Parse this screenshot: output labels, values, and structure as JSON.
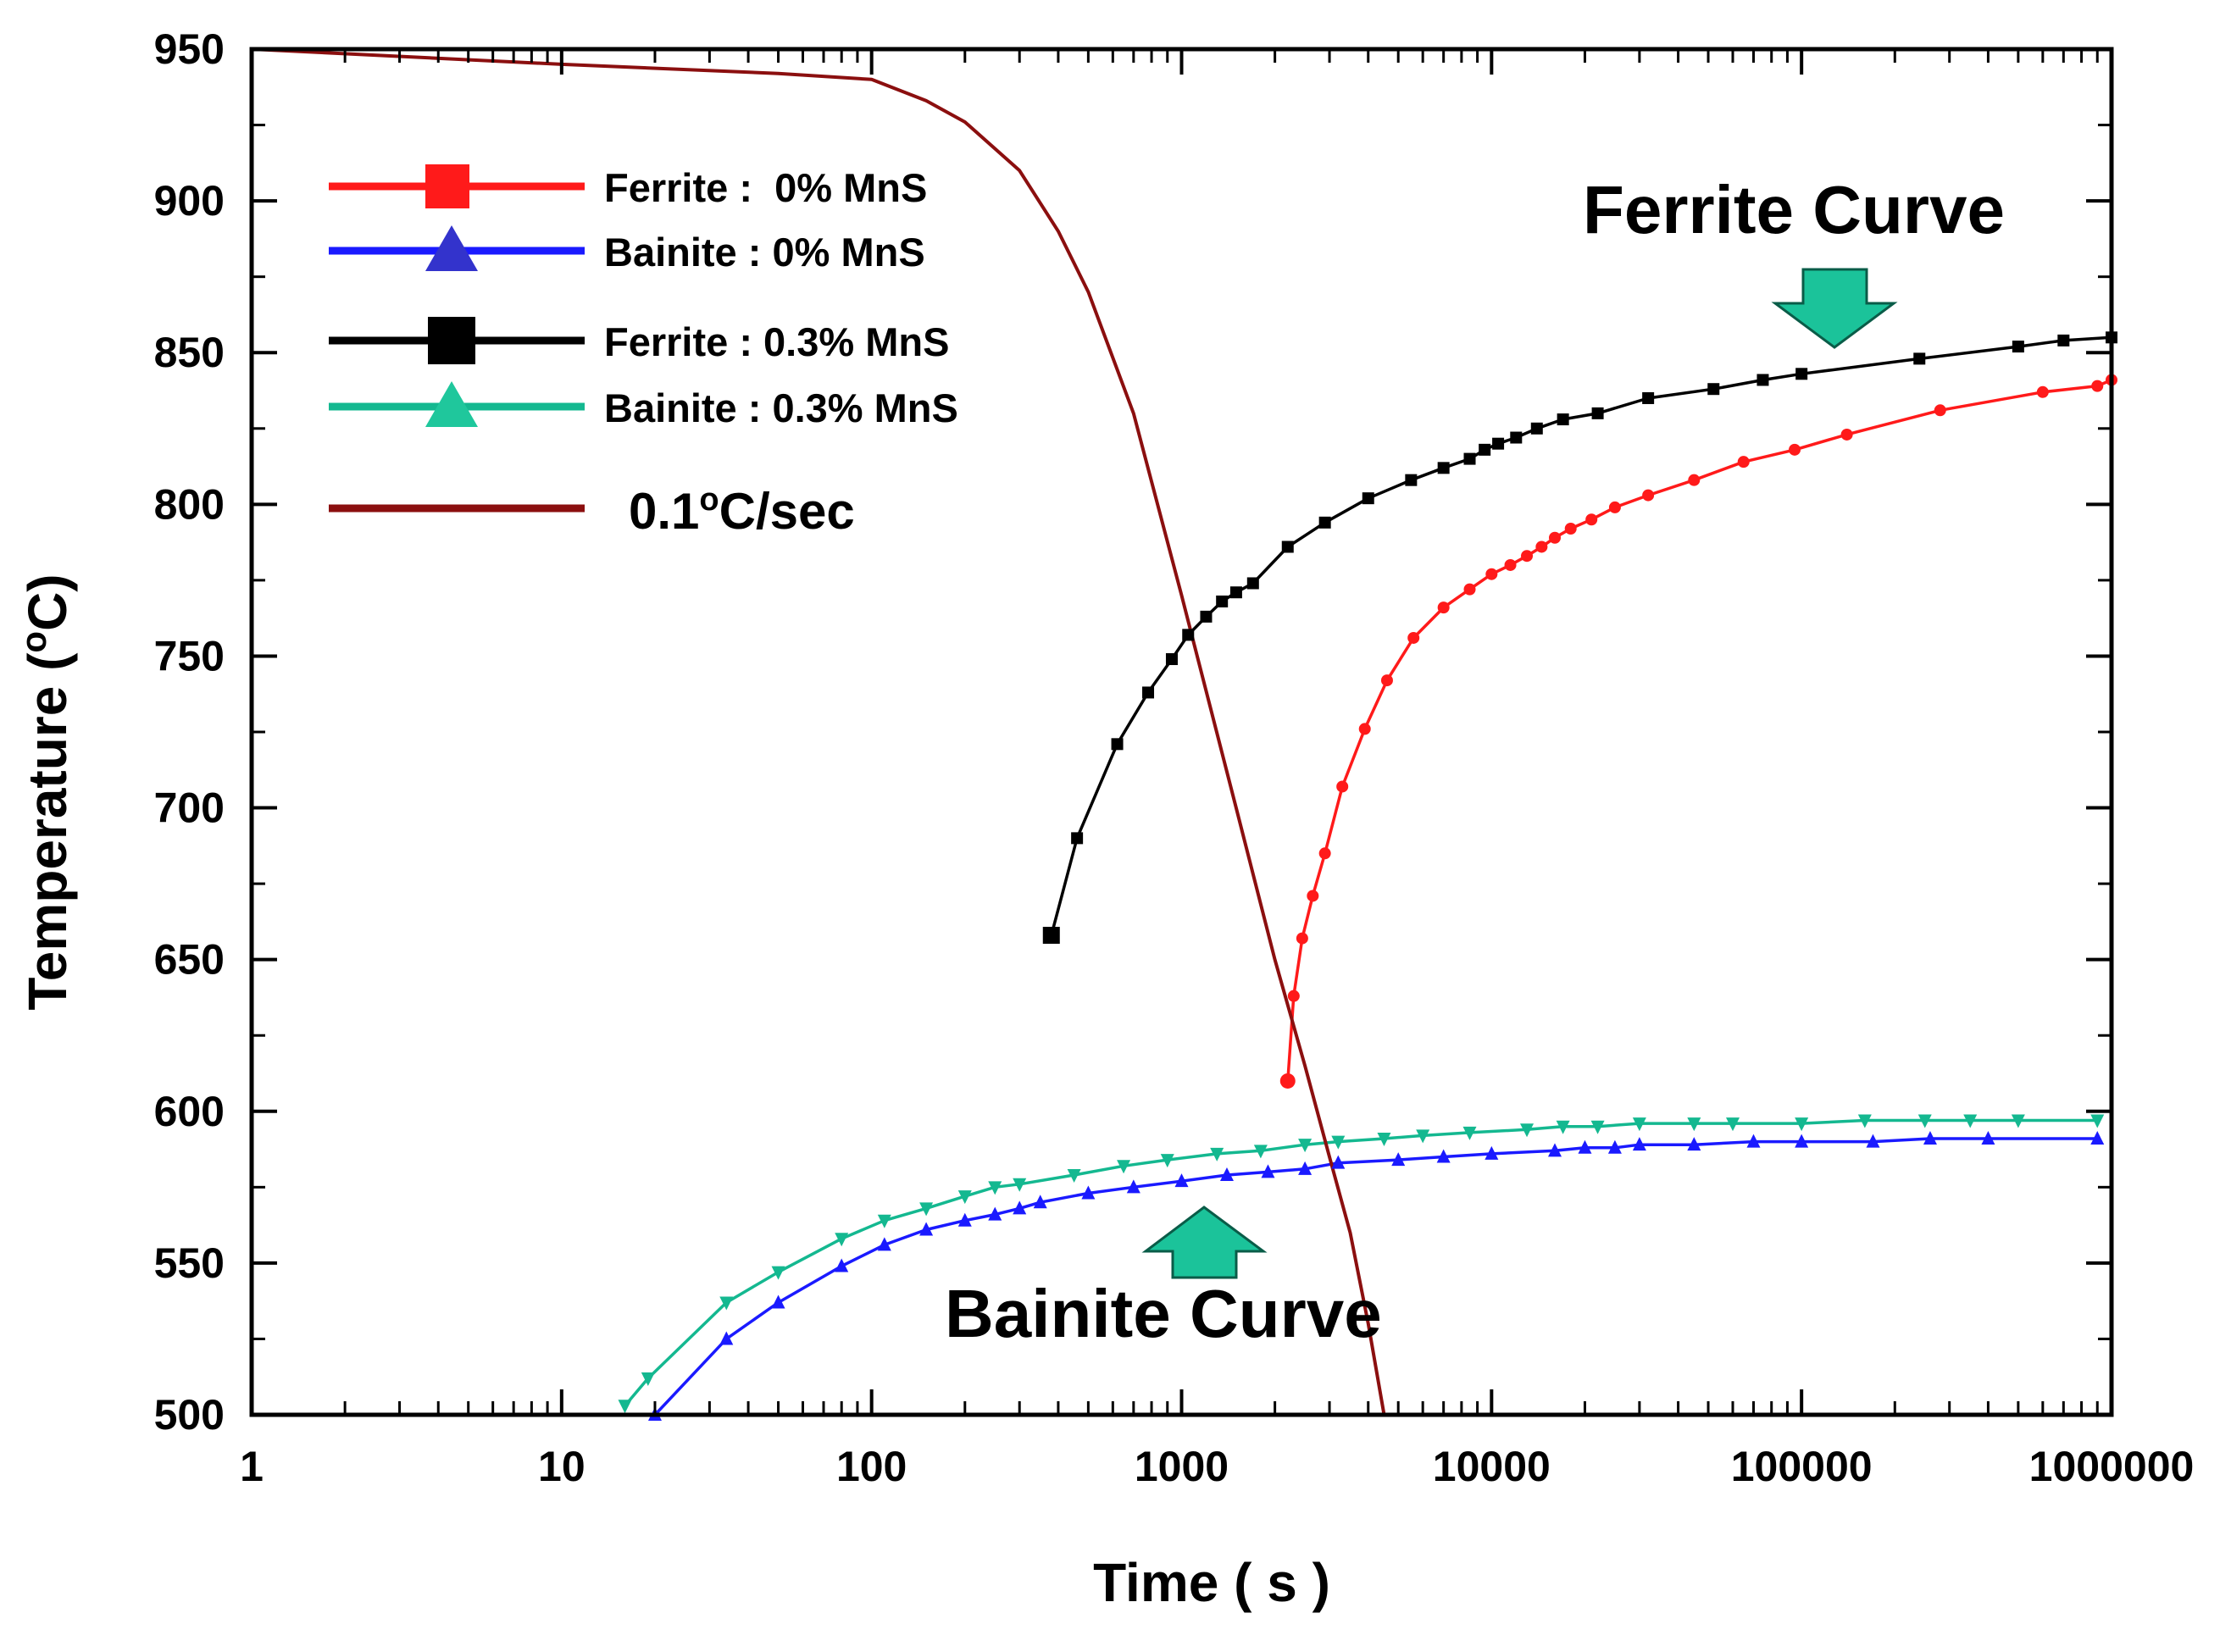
{
  "chart_data": {
    "type": "line",
    "xlabel": "Time ( s )",
    "ylabel": "Temperature  (oC)",
    "ylabel_parts": {
      "pre": "Temperature  (",
      "sup": "o",
      "post": "C)"
    },
    "x_scale": "log",
    "xlim": [
      1,
      1000000
    ],
    "ylim": [
      500,
      950
    ],
    "x_ticks": [
      1,
      10,
      100,
      1000,
      10000,
      100000,
      1000000
    ],
    "x_tick_labels": [
      "1",
      "10",
      "100",
      "1000",
      "10000",
      "100000",
      "1000000"
    ],
    "y_ticks": [
      500,
      550,
      600,
      650,
      700,
      750,
      800,
      850,
      900,
      950
    ],
    "y_tick_labels": [
      "500",
      "550",
      "600",
      "650",
      "700",
      "750",
      "800",
      "850",
      "900",
      "950"
    ],
    "grid": false,
    "legend_position": "top-left",
    "legend": [
      {
        "label": "Ferrite :  0% MnS",
        "color": "#ff1a1a",
        "marker": "square"
      },
      {
        "label": "Bainite : 0% MnS",
        "color": "#1a1aff",
        "marker": "triangle-up"
      },
      {
        "label": "Ferrite : 0.3% MnS",
        "color": "#000000",
        "marker": "square"
      },
      {
        "label": "Bainite : 0.3% MnS",
        "color": "#14b890",
        "marker": "triangle-up"
      },
      {
        "label": "0.1oC/sec",
        "label_parts": {
          "pre": "0.1",
          "sup": "o",
          "post": "C/sec"
        },
        "color": "#8b0f0f",
        "marker": "none"
      }
    ],
    "annotations": [
      {
        "text": "Ferrite Curve",
        "arrow": "down",
        "arrow_color": "#1bc39a",
        "points_to": {
          "x": 130000,
          "y": 852
        }
      },
      {
        "text": "Bainite Curve",
        "arrow": "up",
        "arrow_color": "#1bc39a",
        "points_to": {
          "x": 1200,
          "y": 585
        }
      }
    ],
    "series": [
      {
        "name": "Ferrite :  0% MnS",
        "color": "#ff1a1a",
        "marker": "circle",
        "x": [
          2200,
          2300,
          2450,
          2650,
          2900,
          3300,
          3900,
          4600,
          5600,
          7000,
          8500,
          10000,
          11500,
          13000,
          14500,
          16000,
          18000,
          21000,
          25000,
          32000,
          45000,
          65000,
          95000,
          140000,
          280000,
          600000,
          900000,
          1000000
        ],
        "y": [
          610,
          638,
          657,
          671,
          685,
          707,
          726,
          742,
          756,
          766,
          772,
          777,
          780,
          783,
          786,
          789,
          792,
          795,
          799,
          803,
          808,
          814,
          818,
          823,
          831,
          837,
          839,
          841
        ]
      },
      {
        "name": "Bainite : 0% MnS",
        "color": "#1a1aff",
        "marker": "triangle-up",
        "x": [
          20,
          34,
          50,
          80,
          110,
          150,
          200,
          250,
          300,
          350,
          500,
          700,
          1000,
          1400,
          1900,
          2500,
          3200,
          5000,
          7000,
          10000,
          16000,
          20000,
          25000,
          30000,
          45000,
          70000,
          100000,
          170000,
          260000,
          400000,
          900000
        ],
        "y": [
          500,
          525,
          537,
          549,
          556,
          561,
          564,
          566,
          568,
          570,
          573,
          575,
          577,
          579,
          580,
          581,
          583,
          584,
          585,
          586,
          587,
          588,
          588,
          589,
          589,
          590,
          590,
          590,
          591,
          591,
          591
        ]
      },
      {
        "name": "Ferrite : 0.3% MnS",
        "color": "#000000",
        "marker": "square",
        "x": [
          380,
          460,
          620,
          780,
          930,
          1050,
          1200,
          1350,
          1500,
          1700,
          2200,
          2900,
          4000,
          5500,
          7000,
          8500,
          9500,
          10500,
          12000,
          14000,
          17000,
          22000,
          32000,
          52000,
          75000,
          100000,
          240000,
          500000,
          700000,
          1000000
        ],
        "y": [
          658,
          690,
          721,
          738,
          749,
          757,
          763,
          768,
          771,
          774,
          786,
          794,
          802,
          808,
          812,
          815,
          818,
          820,
          822,
          825,
          828,
          830,
          835,
          838,
          841,
          843,
          848,
          852,
          854,
          855
        ]
      },
      {
        "name": "Bainite : 0.3% MnS",
        "color": "#14b890",
        "marker": "triangle-down",
        "x": [
          16,
          19,
          34,
          50,
          80,
          110,
          150,
          200,
          250,
          300,
          450,
          650,
          900,
          1300,
          1800,
          2500,
          3200,
          4500,
          6000,
          8500,
          13000,
          17000,
          22000,
          30000,
          45000,
          60000,
          100000,
          160000,
          250000,
          350000,
          500000,
          900000
        ],
        "y": [
          503,
          512,
          537,
          547,
          558,
          564,
          568,
          572,
          575,
          576,
          579,
          582,
          584,
          586,
          587,
          589,
          590,
          591,
          592,
          593,
          594,
          595,
          595,
          596,
          596,
          596,
          596,
          597,
          597,
          597,
          597,
          597
        ]
      },
      {
        "name": "0.1oC/sec",
        "color": "#8b0f0f",
        "marker": "none",
        "x": [
          1,
          10,
          50,
          100,
          150,
          200,
          300,
          400,
          500,
          700,
          1000,
          1500,
          2000,
          2500,
          3000,
          3500,
          4000,
          4500
        ],
        "y": [
          950,
          945,
          942,
          940,
          933,
          926,
          910,
          890,
          870,
          830,
          770,
          700,
          650,
          615,
          585,
          560,
          530,
          500
        ]
      }
    ]
  }
}
